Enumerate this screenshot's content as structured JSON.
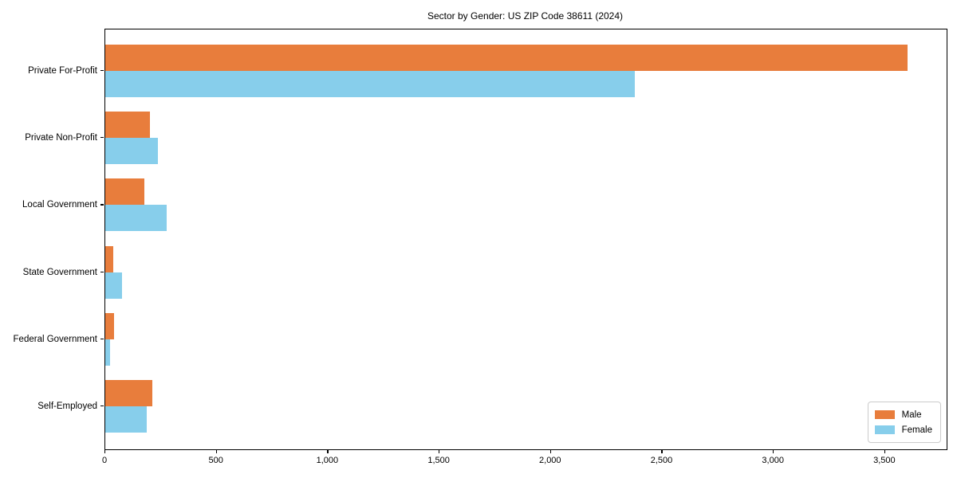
{
  "title": "Sector by Gender: US ZIP Code 38611 (2024)",
  "chart_data": {
    "type": "bar",
    "orientation": "horizontal",
    "title": "Sector by Gender: US ZIP Code 38611 (2024)",
    "categories": [
      "Private For-Profit",
      "Private Non-Profit",
      "Local Government",
      "State Government",
      "Federal Government",
      "Self-Employed"
    ],
    "series": [
      {
        "name": "Male",
        "color": "#e87d3c",
        "values": [
          3600,
          200,
          175,
          35,
          40,
          210
        ]
      },
      {
        "name": "Female",
        "color": "#87ceeb",
        "values": [
          2375,
          235,
          275,
          75,
          20,
          185
        ]
      }
    ],
    "xlabel": "",
    "ylabel": "",
    "xlim": [
      0,
      3776
    ],
    "xticks": [
      0,
      500,
      1000,
      1500,
      2000,
      2500,
      3000,
      3500
    ],
    "xtick_labels": [
      "0",
      "500",
      "1,000",
      "1,500",
      "2,000",
      "2,500",
      "3,000",
      "3,500"
    ],
    "legend_position": "lower right",
    "grid": false,
    "background_color": "#ffffff",
    "spine_color": "#000000"
  }
}
